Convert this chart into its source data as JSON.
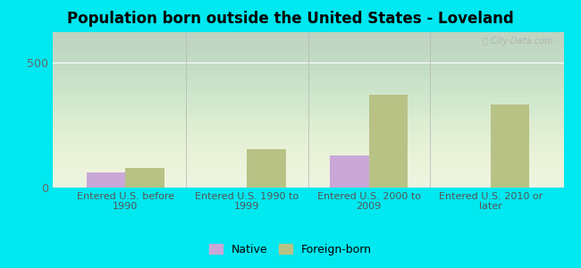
{
  "title": "Population born outside the United States - Loveland",
  "categories": [
    "Entered U.S. before\n1990",
    "Entered U.S. 1990 to\n1999",
    "Entered U.S. 2000 to\n2009",
    "Entered U.S. 2010 or\nlater"
  ],
  "native_values": [
    60,
    0,
    130,
    0
  ],
  "foreign_values": [
    80,
    155,
    370,
    330
  ],
  "native_color": "#c9a8d8",
  "foreign_color": "#b8c285",
  "background_outer": "#00e8f0",
  "background_inner": "#eaf2e2",
  "ylim": [
    0,
    620
  ],
  "yticks": [
    0,
    500
  ],
  "bar_width": 0.32,
  "legend_native": "Native",
  "legend_foreign": "Foreign-born",
  "watermark": "ⓘ City-Data.com",
  "title_fontsize": 12,
  "axis_label_fontsize": 8,
  "tick_fontsize": 9
}
